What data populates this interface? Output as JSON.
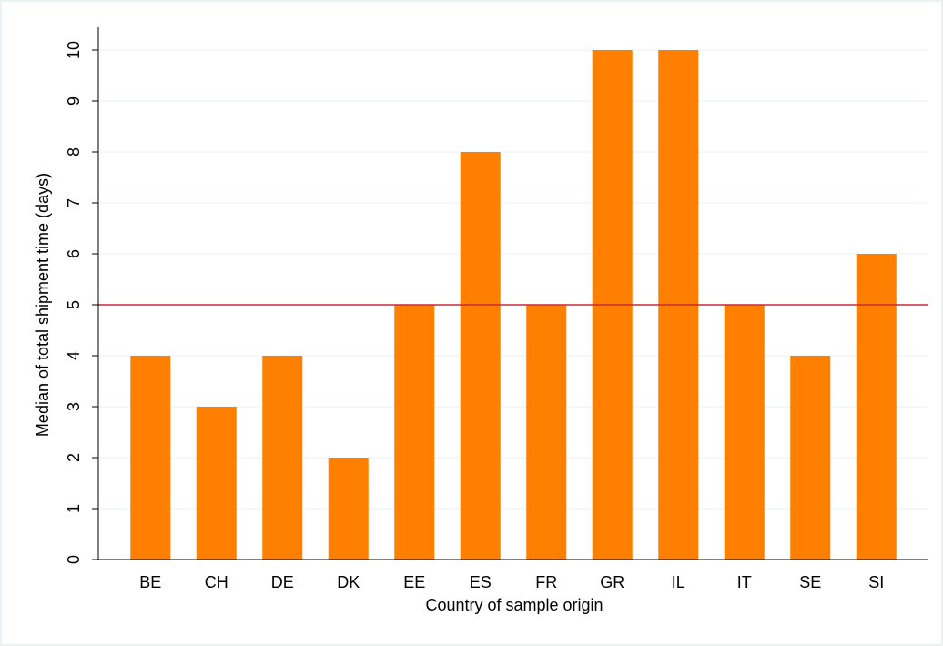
{
  "chart_data": {
    "type": "bar",
    "x_label": "Country of sample origin",
    "y_label": "Median of total shipment time (days)",
    "categories": [
      "BE",
      "CH",
      "DE",
      "DK",
      "EE",
      "ES",
      "FR",
      "GR",
      "IL",
      "IT",
      "SE",
      "SI"
    ],
    "values": [
      4,
      3,
      4,
      2,
      5,
      8,
      5,
      10,
      10,
      5,
      4,
      6
    ],
    "color": "#ff8000",
    "ylim": [
      0,
      10
    ],
    "yticks": [
      0,
      1,
      2,
      3,
      4,
      5,
      6,
      7,
      8,
      9,
      10
    ],
    "grid": true,
    "reference_line": 5,
    "reference_line_color": "#c8283c"
  }
}
